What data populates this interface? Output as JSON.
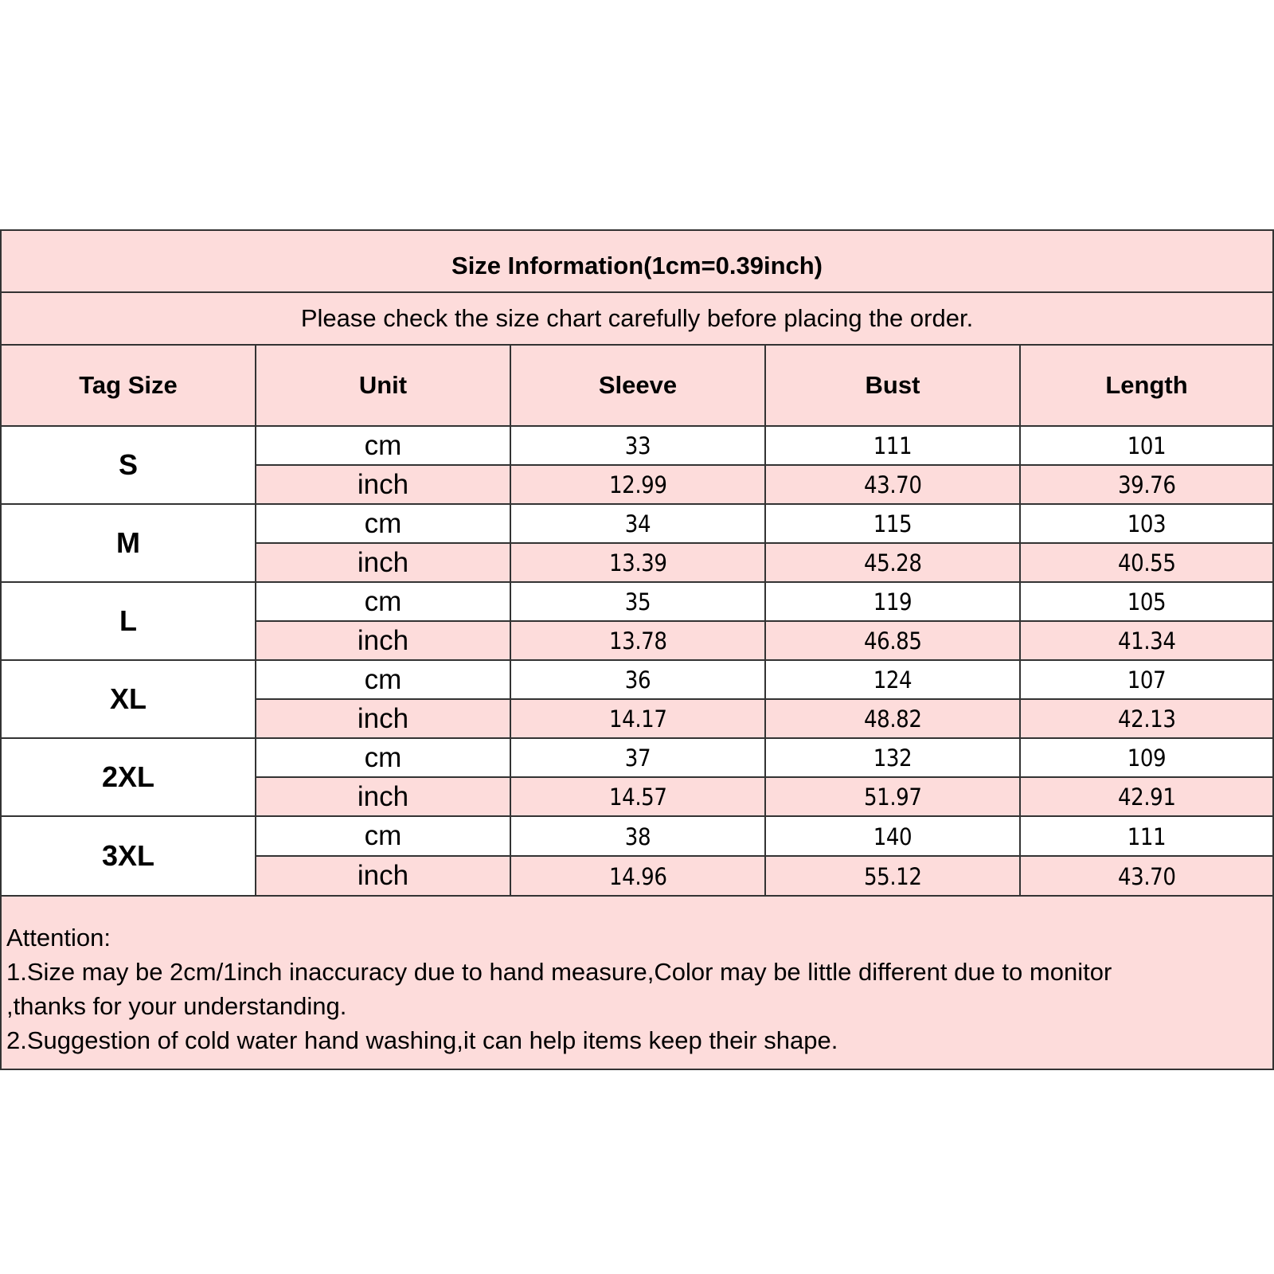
{
  "title": "Size Information(1cm=0.39inch)",
  "subtitle": "Please check the size chart carefully before placing the order.",
  "headers": [
    "Tag Size",
    "Unit",
    "Sleeve",
    "Bust",
    "Length"
  ],
  "rows": [
    {
      "size": "S",
      "cm": {
        "unit": "cm",
        "sleeve": "33",
        "bust": "111",
        "length": "101"
      },
      "inch": {
        "unit": "inch",
        "sleeve": "12.99",
        "bust": "43.70",
        "length": "39.76"
      }
    },
    {
      "size": "M",
      "cm": {
        "unit": "cm",
        "sleeve": "34",
        "bust": "115",
        "length": "103"
      },
      "inch": {
        "unit": "inch",
        "sleeve": "13.39",
        "bust": "45.28",
        "length": "40.55"
      }
    },
    {
      "size": "L",
      "cm": {
        "unit": "cm",
        "sleeve": "35",
        "bust": "119",
        "length": "105"
      },
      "inch": {
        "unit": "inch",
        "sleeve": "13.78",
        "bust": "46.85",
        "length": "41.34"
      }
    },
    {
      "size": "XL",
      "cm": {
        "unit": "cm",
        "sleeve": "36",
        "bust": "124",
        "length": "107"
      },
      "inch": {
        "unit": "inch",
        "sleeve": "14.17",
        "bust": "48.82",
        "length": "42.13"
      }
    },
    {
      "size": "2XL",
      "cm": {
        "unit": "cm",
        "sleeve": "37",
        "bust": "132",
        "length": "109"
      },
      "inch": {
        "unit": "inch",
        "sleeve": "14.57",
        "bust": "51.97",
        "length": "42.91"
      }
    },
    {
      "size": "3XL",
      "cm": {
        "unit": "cm",
        "sleeve": "38",
        "bust": "140",
        "length": "111"
      },
      "inch": {
        "unit": "inch",
        "sleeve": "14.96",
        "bust": "55.12",
        "length": "43.70"
      }
    }
  ],
  "attention": {
    "heading": "Attention:",
    "lines": [
      "1.Size may be 2cm/1inch inaccuracy due to hand measure,Color may be little different due to monitor",
      ",thanks for your understanding.",
      "2.Suggestion of cold water hand washing,it can help items keep their shape."
    ]
  },
  "colors": {
    "pink": "#fddcdb",
    "border": "#333333"
  }
}
